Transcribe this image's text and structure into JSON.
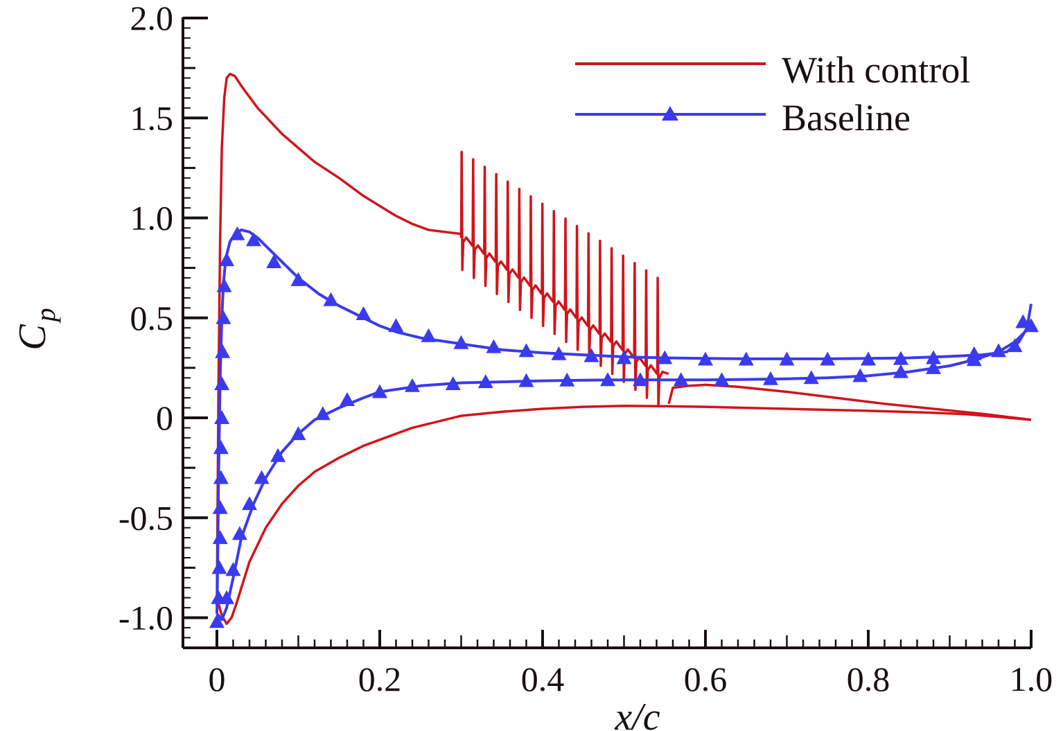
{
  "chart_data": {
    "type": "line",
    "xlabel": "x/c",
    "ylabel": "C",
    "ylabel_sub": "p",
    "xlim": [
      -0.09,
      1.0
    ],
    "ylim": [
      -1.15,
      2.0
    ],
    "x_ticks": [
      0,
      0.2,
      0.4,
      0.6,
      0.8,
      1.0
    ],
    "x_tick_labels": [
      "0",
      "0.2",
      "0.4",
      "0.6",
      "0.8",
      "1.0"
    ],
    "y_ticks": [
      -1.0,
      -0.5,
      0,
      0.5,
      1.0,
      1.5,
      2.0
    ],
    "y_tick_labels": [
      "-1.0",
      "-0.5",
      "0",
      "0.5",
      "1.0",
      "1.5",
      "2.0"
    ],
    "grid": false,
    "legend_position": "top-right",
    "colors": {
      "with_control": "#d0141b",
      "baseline": "#3a3af0",
      "axis": "#1a0f0f"
    },
    "series": [
      {
        "name": "With control",
        "color": "#d0141b",
        "marker": "none",
        "segments": [
          {
            "part": "upper-surface-front",
            "points": [
              [
                0.0,
                -0.9
              ],
              [
                0.002,
                0.2
              ],
              [
                0.004,
                0.9
              ],
              [
                0.006,
                1.35
              ],
              [
                0.009,
                1.6
              ],
              [
                0.012,
                1.7
              ],
              [
                0.016,
                1.72
              ],
              [
                0.022,
                1.71
              ],
              [
                0.03,
                1.66
              ],
              [
                0.05,
                1.55
              ],
              [
                0.08,
                1.42
              ],
              [
                0.1,
                1.35
              ],
              [
                0.12,
                1.28
              ],
              [
                0.15,
                1.2
              ],
              [
                0.18,
                1.11
              ],
              [
                0.2,
                1.06
              ],
              [
                0.22,
                1.01
              ],
              [
                0.24,
                0.97
              ],
              [
                0.26,
                0.94
              ],
              [
                0.28,
                0.93
              ],
              [
                0.3,
                0.92
              ]
            ]
          },
          {
            "part": "upper-surface-jet-region",
            "x_start": 0.3,
            "x_end": 0.555,
            "spike_count": 18,
            "spike_top_start": 1.33,
            "spike_top_end": 0.7,
            "base_start": 0.88,
            "base_end": 0.2,
            "trough_start": 0.74,
            "trough_end": 0.06
          },
          {
            "part": "upper-surface-rear",
            "points": [
              [
                0.555,
                0.07
              ],
              [
                0.56,
                0.15
              ],
              [
                0.58,
                0.16
              ],
              [
                0.6,
                0.165
              ],
              [
                0.64,
                0.155
              ],
              [
                0.7,
                0.13
              ],
              [
                0.76,
                0.1
              ],
              [
                0.82,
                0.07
              ],
              [
                0.88,
                0.045
              ],
              [
                0.94,
                0.02
              ],
              [
                0.98,
                0.0
              ],
              [
                1.0,
                -0.01
              ]
            ]
          },
          {
            "part": "lower-surface",
            "points": [
              [
                0.0,
                -0.9
              ],
              [
                0.006,
                -0.99
              ],
              [
                0.012,
                -1.03
              ],
              [
                0.018,
                -1.0
              ],
              [
                0.024,
                -0.93
              ],
              [
                0.04,
                -0.72
              ],
              [
                0.06,
                -0.55
              ],
              [
                0.08,
                -0.43
              ],
              [
                0.1,
                -0.34
              ],
              [
                0.12,
                -0.27
              ],
              [
                0.15,
                -0.2
              ],
              [
                0.18,
                -0.14
              ],
              [
                0.2,
                -0.11
              ],
              [
                0.24,
                -0.05
              ],
              [
                0.28,
                -0.01
              ],
              [
                0.3,
                0.01
              ],
              [
                0.35,
                0.03
              ],
              [
                0.4,
                0.045
              ],
              [
                0.45,
                0.055
              ],
              [
                0.5,
                0.06
              ],
              [
                0.55,
                0.058
              ],
              [
                0.6,
                0.055
              ],
              [
                0.65,
                0.05
              ],
              [
                0.7,
                0.045
              ],
              [
                0.75,
                0.04
              ],
              [
                0.8,
                0.035
              ],
              [
                0.84,
                0.03
              ],
              [
                0.88,
                0.025
              ],
              [
                0.92,
                0.018
              ],
              [
                0.96,
                0.005
              ],
              [
                1.0,
                -0.01
              ]
            ]
          }
        ]
      },
      {
        "name": "Baseline",
        "color": "#3a3af0",
        "marker": "triangle",
        "segments": [
          {
            "part": "upper-surface",
            "points": [
              [
                0.0,
                -0.98
              ],
              [
                0.001,
                -0.7
              ],
              [
                0.002,
                -0.3
              ],
              [
                0.004,
                0.2
              ],
              [
                0.006,
                0.5
              ],
              [
                0.008,
                0.67
              ],
              [
                0.011,
                0.8
              ],
              [
                0.016,
                0.88
              ],
              [
                0.022,
                0.92
              ],
              [
                0.03,
                0.94
              ],
              [
                0.04,
                0.93
              ],
              [
                0.05,
                0.9
              ],
              [
                0.075,
                0.8
              ],
              [
                0.1,
                0.7
              ],
              [
                0.125,
                0.62
              ],
              [
                0.15,
                0.56
              ],
              [
                0.18,
                0.5
              ],
              [
                0.2,
                0.46
              ],
              [
                0.22,
                0.43
              ],
              [
                0.25,
                0.4
              ],
              [
                0.3,
                0.37
              ],
              [
                0.35,
                0.34
              ],
              [
                0.4,
                0.325
              ],
              [
                0.45,
                0.315
              ],
              [
                0.5,
                0.305
              ],
              [
                0.55,
                0.3
              ],
              [
                0.6,
                0.297
              ],
              [
                0.65,
                0.295
              ],
              [
                0.7,
                0.295
              ],
              [
                0.75,
                0.295
              ],
              [
                0.8,
                0.297
              ],
              [
                0.85,
                0.3
              ],
              [
                0.9,
                0.307
              ],
              [
                0.94,
                0.315
              ],
              [
                0.97,
                0.33
              ],
              [
                0.985,
                0.38
              ],
              [
                0.995,
                0.45
              ],
              [
                1.0,
                0.57
              ]
            ]
          },
          {
            "part": "lower-surface",
            "points": [
              [
                0.0,
                -0.98
              ],
              [
                0.006,
                -1.01
              ],
              [
                0.012,
                -0.95
              ],
              [
                0.02,
                -0.8
              ],
              [
                0.03,
                -0.6
              ],
              [
                0.045,
                -0.43
              ],
              [
                0.06,
                -0.3
              ],
              [
                0.08,
                -0.17
              ],
              [
                0.1,
                -0.08
              ],
              [
                0.12,
                -0.01
              ],
              [
                0.15,
                0.05
              ],
              [
                0.18,
                0.1
              ],
              [
                0.2,
                0.13
              ],
              [
                0.25,
                0.16
              ],
              [
                0.3,
                0.175
              ],
              [
                0.35,
                0.18
              ],
              [
                0.4,
                0.185
              ],
              [
                0.45,
                0.188
              ],
              [
                0.5,
                0.19
              ],
              [
                0.55,
                0.19
              ],
              [
                0.6,
                0.19
              ],
              [
                0.65,
                0.192
              ],
              [
                0.7,
                0.195
              ],
              [
                0.75,
                0.2
              ],
              [
                0.8,
                0.21
              ],
              [
                0.85,
                0.23
              ],
              [
                0.9,
                0.26
              ],
              [
                0.93,
                0.29
              ],
              [
                0.96,
                0.33
              ],
              [
                0.98,
                0.38
              ],
              [
                0.995,
                0.44
              ],
              [
                1.0,
                0.46
              ]
            ]
          }
        ],
        "marker_points": [
          [
            0.0,
            -1.02
          ],
          [
            0.002,
            -0.9
          ],
          [
            0.003,
            -0.75
          ],
          [
            0.004,
            -0.6
          ],
          [
            0.004,
            -0.45
          ],
          [
            0.005,
            -0.3
          ],
          [
            0.005,
            -0.15
          ],
          [
            0.006,
            0.0
          ],
          [
            0.006,
            0.17
          ],
          [
            0.007,
            0.33
          ],
          [
            0.008,
            0.5
          ],
          [
            0.009,
            0.66
          ],
          [
            0.012,
            0.79
          ],
          [
            0.025,
            0.92
          ],
          [
            0.045,
            0.89
          ],
          [
            0.07,
            0.78
          ],
          [
            0.1,
            0.69
          ],
          [
            0.14,
            0.59
          ],
          [
            0.18,
            0.52
          ],
          [
            0.22,
            0.46
          ],
          [
            0.26,
            0.41
          ],
          [
            0.3,
            0.375
          ],
          [
            0.34,
            0.355
          ],
          [
            0.38,
            0.335
          ],
          [
            0.42,
            0.32
          ],
          [
            0.46,
            0.31
          ],
          [
            0.5,
            0.3
          ],
          [
            0.55,
            0.3
          ],
          [
            0.6,
            0.293
          ],
          [
            0.65,
            0.293
          ],
          [
            0.7,
            0.293
          ],
          [
            0.75,
            0.293
          ],
          [
            0.8,
            0.293
          ],
          [
            0.84,
            0.296
          ],
          [
            0.88,
            0.3
          ],
          [
            0.93,
            0.32
          ],
          [
            0.96,
            0.335
          ],
          [
            0.98,
            0.36
          ],
          [
            0.99,
            0.48
          ],
          [
            1.0,
            0.46
          ],
          [
            0.012,
            -0.9
          ],
          [
            0.02,
            -0.76
          ],
          [
            0.028,
            -0.58
          ],
          [
            0.04,
            -0.43
          ],
          [
            0.055,
            -0.3
          ],
          [
            0.075,
            -0.19
          ],
          [
            0.1,
            -0.08
          ],
          [
            0.13,
            0.02
          ],
          [
            0.16,
            0.09
          ],
          [
            0.2,
            0.13
          ],
          [
            0.24,
            0.16
          ],
          [
            0.29,
            0.17
          ],
          [
            0.33,
            0.18
          ],
          [
            0.38,
            0.185
          ],
          [
            0.43,
            0.188
          ],
          [
            0.48,
            0.19
          ],
          [
            0.52,
            0.19
          ],
          [
            0.57,
            0.19
          ],
          [
            0.62,
            0.19
          ],
          [
            0.68,
            0.195
          ],
          [
            0.73,
            0.2
          ],
          [
            0.79,
            0.21
          ],
          [
            0.84,
            0.23
          ],
          [
            0.88,
            0.25
          ],
          [
            0.93,
            0.29
          ]
        ]
      }
    ]
  }
}
